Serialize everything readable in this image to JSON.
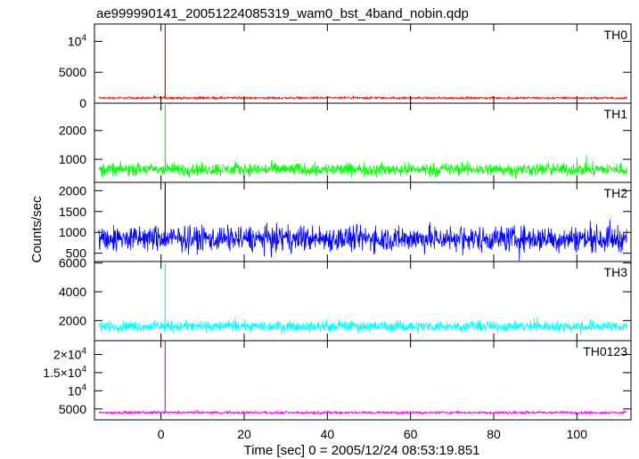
{
  "chart_data": {
    "type": "line",
    "title": "ae999990141_20051224085319_wam0_bst_4band_nobin.qdp",
    "xlabel": "Time [sec] 0 = 2005/12/24 08:53:19.851",
    "ylabel": "Counts/sec",
    "xlim": [
      -16,
      113
    ],
    "x_ticks": [
      0,
      20,
      40,
      60,
      80,
      100
    ],
    "data_x_range": [
      -15,
      112
    ],
    "burst_time": 1,
    "grid": false,
    "legend": "none",
    "panels": [
      {
        "name": "TH0",
        "color": "#ff0000",
        "ylim": [
          0,
          12800
        ],
        "y_ticks": [
          {
            "value": 0,
            "label": "0"
          },
          {
            "value": 5000,
            "label": "5000"
          },
          {
            "value": 10000,
            "label": "10",
            "sup": "4"
          }
        ],
        "baseline": 850,
        "noise_amplitude": 250,
        "spike_peak": 12800
      },
      {
        "name": "TH1",
        "color": "#00ff00",
        "ylim": [
          200,
          2950
        ],
        "y_ticks": [
          {
            "value": 1000,
            "label": "1000"
          },
          {
            "value": 2000,
            "label": "2000"
          }
        ],
        "baseline": 650,
        "noise_amplitude": 330,
        "spike_peak": 2900
      },
      {
        "name": "TH2",
        "color": "#0000ff",
        "ylim": [
          300,
          2200
        ],
        "y_ticks": [
          {
            "value": 500,
            "label": "500"
          },
          {
            "value": 1000,
            "label": "1000"
          },
          {
            "value": 1500,
            "label": "1500"
          },
          {
            "value": 2000,
            "label": "2000"
          }
        ],
        "baseline": 850,
        "noise_amplitude": 450,
        "spike_peak": 2200
      },
      {
        "name": "TH3",
        "color": "#00ffff",
        "ylim": [
          600,
          6100
        ],
        "y_ticks": [
          {
            "value": 2000,
            "label": "2000"
          },
          {
            "value": 4000,
            "label": "4000"
          },
          {
            "value": 6000,
            "label": "6000"
          }
        ],
        "baseline": 1600,
        "noise_amplitude": 550,
        "spike_peak": 6000
      },
      {
        "name": "TH0123",
        "color": "#ff00ff",
        "ylim": [
          2000,
          23800
        ],
        "y_ticks": [
          {
            "value": 5000,
            "label": "5000"
          },
          {
            "value": 10000,
            "label": "10",
            "sup": "4"
          },
          {
            "value": 15000,
            "label": "1.5×10",
            "sup": "4"
          },
          {
            "value": 20000,
            "label": "2×10",
            "sup": "4"
          }
        ],
        "baseline": 4000,
        "noise_amplitude": 550,
        "spike_peak": 23800
      }
    ]
  }
}
